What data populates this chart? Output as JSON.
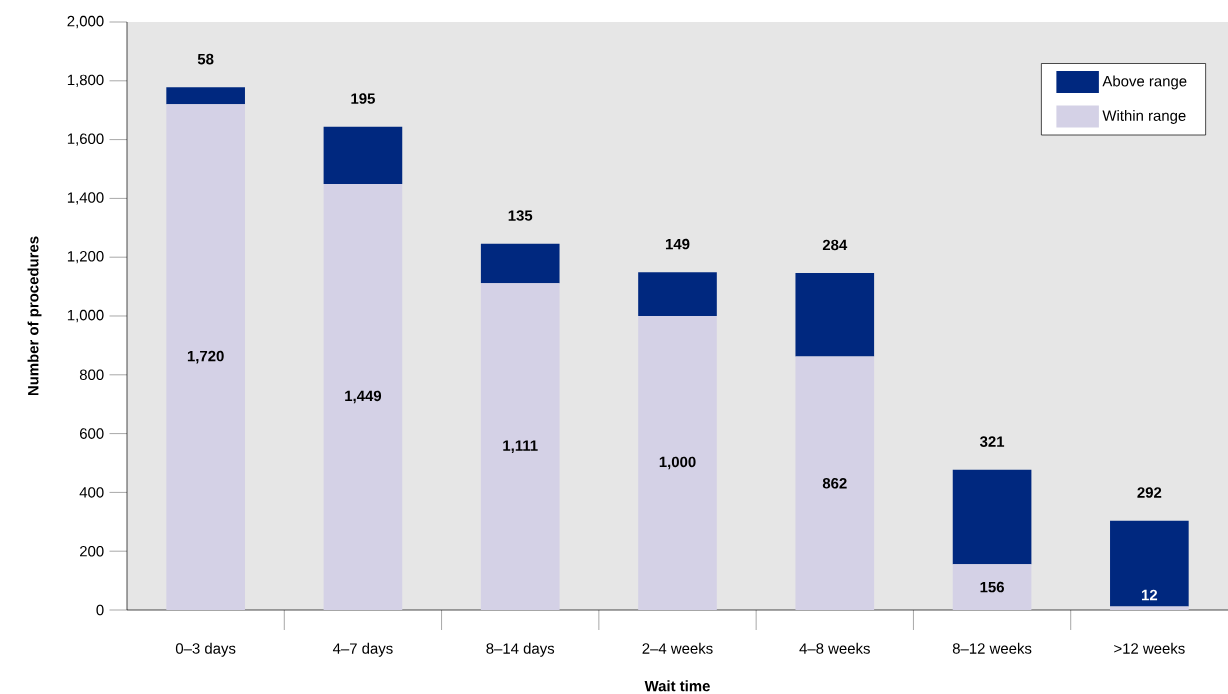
{
  "chart_data": {
    "type": "bar",
    "stacked": true,
    "xlabel": "Wait time",
    "ylabel": "Number of procedures",
    "categories": [
      "0–3 days",
      "4–7 days",
      "8–14 days",
      "2–4 weeks",
      "4–8 weeks",
      "8–12 weeks",
      ">12 weeks"
    ],
    "series": [
      {
        "name": "Within range",
        "color": "#d4d1e6",
        "values": [
          1720,
          1449,
          1111,
          1000,
          862,
          156,
          12
        ],
        "value_labels": [
          "1,720",
          "1,449",
          "1,111",
          "1,000",
          "862",
          "156",
          "12"
        ]
      },
      {
        "name": "Above range",
        "color": "#00287f",
        "values": [
          58,
          195,
          135,
          149,
          284,
          321,
          292
        ],
        "value_labels": [
          "58",
          "195",
          "135",
          "149",
          "284",
          "321",
          "292"
        ]
      }
    ],
    "ylim": [
      0,
      2000
    ],
    "yticks": [
      0,
      200,
      400,
      600,
      800,
      {
        "value": 1000,
        "label": "1,000"
      },
      {
        "value": 1200,
        "label": "1,200"
      },
      {
        "value": 1400,
        "label": "1,400"
      },
      {
        "value": 1600,
        "label": "1,600"
      },
      {
        "value": 1800,
        "label": "1,800"
      },
      {
        "value": 2000,
        "label": "2,000"
      }
    ],
    "legend": "top right"
  }
}
